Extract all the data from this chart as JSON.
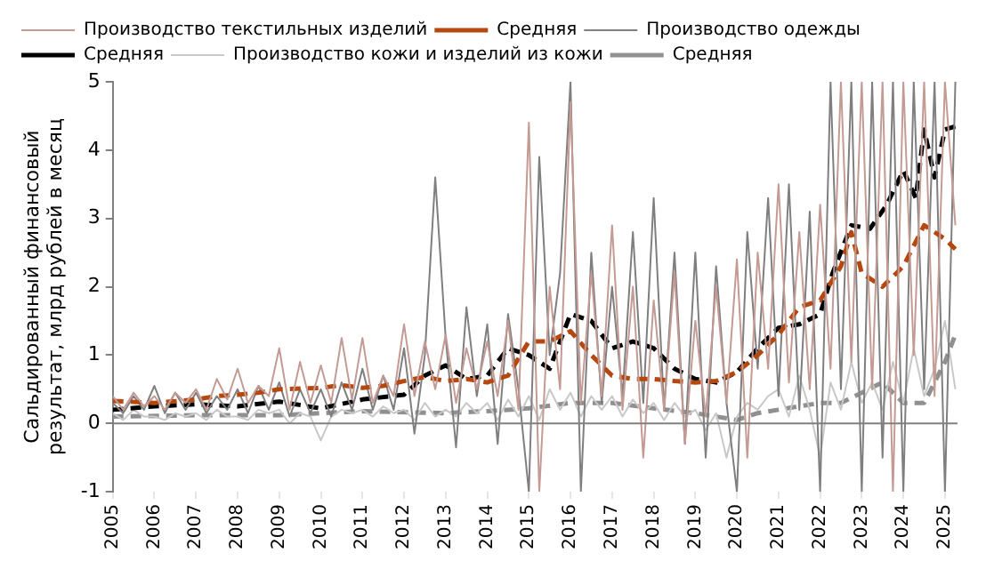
{
  "chart_data": {
    "type": "line",
    "ylabel": "Сальдированный финансовый результат, млрд рублей в месяц",
    "x": [
      2005,
      2005.25,
      2005.5,
      2005.75,
      2006,
      2006.25,
      2006.5,
      2006.75,
      2007,
      2007.25,
      2007.5,
      2007.75,
      2008,
      2008.25,
      2008.5,
      2008.75,
      2009,
      2009.25,
      2009.5,
      2009.75,
      2010,
      2010.25,
      2010.5,
      2010.75,
      2011,
      2011.25,
      2011.5,
      2011.75,
      2012,
      2012.25,
      2012.5,
      2012.75,
      2013,
      2013.25,
      2013.5,
      2013.75,
      2014,
      2014.25,
      2014.5,
      2014.75,
      2015,
      2015.25,
      2015.5,
      2015.75,
      2016,
      2016.25,
      2016.5,
      2016.75,
      2017,
      2017.25,
      2017.5,
      2017.75,
      2018,
      2018.25,
      2018.5,
      2018.75,
      2019,
      2019.25,
      2019.5,
      2019.75,
      2020,
      2020.25,
      2020.5,
      2020.75,
      2021,
      2021.25,
      2021.5,
      2021.75,
      2022,
      2022.25,
      2022.5,
      2022.75,
      2023,
      2023.25,
      2023.5,
      2023.75,
      2024,
      2024.25,
      2024.5,
      2024.75,
      2025,
      2025.25
    ],
    "series": [
      {
        "name": "Производство текстильных изделий",
        "color": "#c49a95",
        "line_style": "solid",
        "values": [
          0.4,
          0.2,
          0.45,
          0.25,
          0.4,
          0.2,
          0.45,
          0.3,
          0.5,
          0.2,
          0.65,
          0.35,
          0.8,
          0.3,
          0.55,
          0.4,
          1.1,
          0.2,
          0.9,
          0.3,
          0.85,
          0.3,
          1.25,
          0.35,
          1.25,
          0.3,
          0.7,
          0.4,
          1.45,
          0.4,
          1.2,
          0.5,
          1.3,
          0.3,
          1.1,
          0.5,
          1.2,
          0.4,
          1.5,
          0.2,
          4.4,
          -1,
          2.0,
          0.5,
          4.7,
          0.3,
          2.2,
          0.4,
          2.9,
          0.2,
          2.0,
          -0.5,
          1.8,
          0.2,
          2.2,
          -0.3,
          1.5,
          0.1,
          2.0,
          0.3,
          2.4,
          -0.5,
          2.5,
          0.8,
          3.5,
          0.6,
          2.8,
          0.5,
          3.2,
          0.8,
          5,
          0.9,
          5,
          0.5,
          5,
          -1,
          5,
          1.0,
          5,
          0.4,
          5,
          2.9
        ]
      },
      {
        "name": "Средняя",
        "color": "#b5480e",
        "line_style": "dashed",
        "x": [
          2005,
          2006,
          2007,
          2007.5,
          2008,
          2008.5,
          2009,
          2010,
          2010.5,
          2011,
          2011.5,
          2012,
          2012.5,
          2013,
          2013.5,
          2014,
          2014.5,
          2015,
          2015.5,
          2016,
          2016.5,
          2017,
          2017.5,
          2018,
          2018.5,
          2019,
          2019.5,
          2020,
          2020.5,
          2021,
          2021.5,
          2022,
          2022.5,
          2022.75,
          2023,
          2023.5,
          2024,
          2024.5,
          2025,
          2025.25
        ],
        "values": [
          0.33,
          0.3,
          0.35,
          0.4,
          0.42,
          0.45,
          0.5,
          0.52,
          0.56,
          0.52,
          0.55,
          0.62,
          0.68,
          0.62,
          0.65,
          0.6,
          0.7,
          1.2,
          1.2,
          1.35,
          1.0,
          0.7,
          0.65,
          0.65,
          0.62,
          0.6,
          0.62,
          0.75,
          1.0,
          1.3,
          1.7,
          1.8,
          2.3,
          2.8,
          2.2,
          2.0,
          2.3,
          2.9,
          2.7,
          2.55
        ]
      },
      {
        "name": "Производство одежды",
        "color": "#7f7f7f",
        "line_style": "solid",
        "values": [
          0.3,
          0.15,
          0.4,
          0.2,
          0.55,
          0.15,
          0.45,
          0.2,
          0.45,
          0.15,
          0.4,
          0.2,
          0.5,
          0.15,
          0.55,
          0.2,
          0.6,
          0.1,
          0.5,
          0.15,
          0.5,
          0.1,
          0.6,
          0.2,
          0.8,
          0.2,
          0.7,
          0.2,
          1.1,
          -0.15,
          1.0,
          3.6,
          1.25,
          -0.35,
          1.7,
          0.4,
          1.45,
          -0.3,
          1.6,
          0.5,
          -1,
          3.9,
          1.0,
          2.2,
          5,
          -1,
          2.5,
          0.3,
          2.0,
          0.4,
          2.8,
          0.3,
          3.3,
          0.2,
          2.5,
          -0.3,
          2.5,
          -0.5,
          2.3,
          0.3,
          -1,
          2.8,
          0.8,
          3.3,
          0.4,
          3.5,
          0.2,
          3.1,
          -1,
          5,
          0.5,
          5,
          -1,
          5,
          -0.5,
          5,
          -1,
          5,
          0.5,
          5,
          -1,
          5
        ]
      },
      {
        "name": "Средняя",
        "color": "#000000",
        "line_style": "dashed",
        "x": [
          2005,
          2006,
          2007,
          2008,
          2009,
          2010,
          2011,
          2012,
          2012.5,
          2013,
          2013.5,
          2014,
          2014.5,
          2015,
          2015.5,
          2015.75,
          2016,
          2016.5,
          2017,
          2017.5,
          2018,
          2018.5,
          2019,
          2019.5,
          2020,
          2020.5,
          2021,
          2021.5,
          2022,
          2022.3,
          2022.75,
          2023.2,
          2023.6,
          2024,
          2024.3,
          2024.5,
          2024.75,
          2025,
          2025.25
        ],
        "values": [
          0.2,
          0.25,
          0.28,
          0.25,
          0.32,
          0.22,
          0.35,
          0.42,
          0.7,
          0.85,
          0.65,
          0.7,
          1.1,
          1.0,
          0.8,
          1.2,
          1.6,
          1.5,
          1.1,
          1.2,
          1.1,
          0.8,
          0.65,
          0.6,
          0.75,
          1.1,
          1.4,
          1.45,
          1.6,
          2.2,
          2.9,
          2.85,
          3.2,
          3.7,
          3.3,
          4.3,
          3.6,
          4.3,
          4.35
        ]
      },
      {
        "name": "Производство кожи и изделий из кожи",
        "color": "#c8c8c8",
        "line_style": "solid",
        "values": [
          0.15,
          0.05,
          0.2,
          0.1,
          0.1,
          0.05,
          0.15,
          0.1,
          0.15,
          0.05,
          0.2,
          0.1,
          0.1,
          0.05,
          0.2,
          0.15,
          0.2,
          0.0,
          0.15,
          0.1,
          -0.25,
          0.1,
          0.2,
          0.15,
          0.2,
          0.1,
          0.25,
          0.15,
          0.2,
          0.05,
          0.3,
          0.1,
          0.2,
          0.1,
          0.3,
          0.15,
          0.3,
          0.05,
          0.35,
          0.1,
          0.4,
          0.05,
          0.5,
          0.2,
          0.45,
          0.1,
          0.4,
          0.2,
          0.4,
          0.1,
          0.35,
          0.15,
          0.3,
          0.05,
          0.3,
          0.1,
          0.2,
          -0.1,
          0.15,
          -0.5,
          0.1,
          0.3,
          0.2,
          0.4,
          0.5,
          0.1,
          0.7,
          0.2,
          -0.5,
          0.6,
          0.2,
          0.9,
          0.3,
          0.6,
          0.2,
          0.9,
          0.3,
          1.1,
          0.4,
          0.8,
          1.5,
          0.5
        ]
      },
      {
        "name": "Средняя",
        "color": "#909090",
        "line_style": "dashed",
        "x": [
          2005,
          2007,
          2009,
          2011,
          2013,
          2014,
          2015,
          2016,
          2017,
          2018,
          2019,
          2020,
          2020.5,
          2021,
          2022,
          2022.5,
          2023,
          2023.5,
          2024,
          2024.5,
          2025,
          2025.25
        ],
        "values": [
          0.1,
          0.12,
          0.12,
          0.18,
          0.15,
          0.18,
          0.22,
          0.3,
          0.3,
          0.22,
          0.15,
          0.05,
          0.15,
          0.2,
          0.3,
          0.3,
          0.45,
          0.6,
          0.3,
          0.3,
          0.9,
          1.3
        ]
      }
    ],
    "xlim": [
      2005,
      2025.3
    ],
    "xticks": [
      2005,
      2006,
      2007,
      2008,
      2009,
      2010,
      2011,
      2012,
      2013,
      2014,
      2015,
      2016,
      2017,
      2018,
      2019,
      2020,
      2021,
      2022,
      2023,
      2024,
      2025
    ],
    "ylim": [
      -1,
      5
    ],
    "yticks": [
      -1,
      0,
      1,
      2,
      3,
      4,
      5
    ],
    "ref_lines": [
      {
        "axis": "y",
        "value": 0,
        "color": "#808080"
      }
    ],
    "grid": false,
    "legend": "top",
    "marker": "none"
  }
}
